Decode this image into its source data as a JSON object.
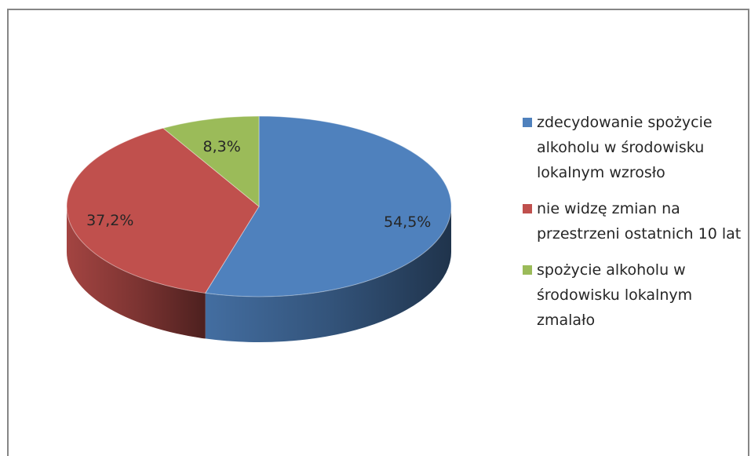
{
  "chart_data": {
    "type": "pie",
    "three_d": true,
    "categories": [
      "zdecydowanie spożycie alkoholu w środowisku lokalnym wzrosło",
      "nie widzę zmian na przestrzeni ostatnich 10 lat",
      "spożycie alkoholu w środowisku lokalnym zmalało"
    ],
    "values": [
      54.5,
      37.2,
      8.3
    ],
    "value_labels": [
      "54,5%",
      "37,2%",
      "8,3%"
    ],
    "colors": [
      "#4f81bd",
      "#c0504d",
      "#9bbb59"
    ],
    "legend": "right"
  }
}
